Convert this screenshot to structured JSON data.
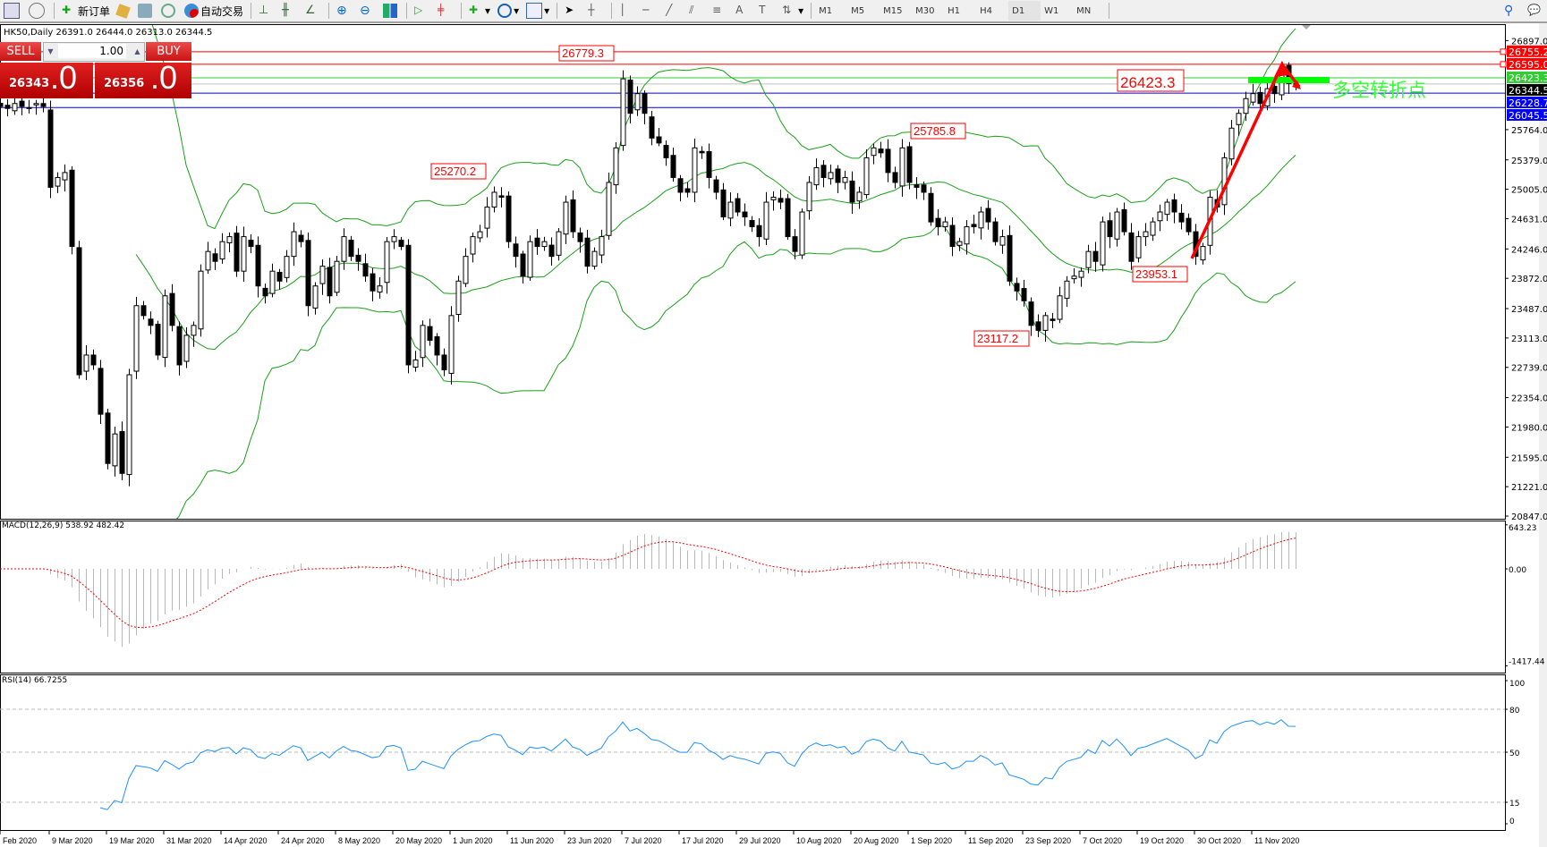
{
  "toolbar": {
    "new_order_label": "新订单",
    "auto_trading_label": "自动交易",
    "timeframes": [
      "M1",
      "M5",
      "M15",
      "M30",
      "H1",
      "H4",
      "D1",
      "W1",
      "MN"
    ],
    "active_timeframe": "D1"
  },
  "chart_header": "HK50,Daily  26391.0 26444.0 26313.0 26344.5",
  "trade_panel": {
    "sell_label": "SELL",
    "buy_label": "BUY",
    "lot": "1.00",
    "sell_price_main": "26343",
    "sell_price_frac": ".0",
    "buy_price_main": "26356",
    "buy_price_frac": ".0"
  },
  "chart_data": {
    "type": "candlestick",
    "symbol": "HK50",
    "timeframe": "Daily",
    "ylim": [
      20847.0,
      26897.0
    ],
    "price_ticks": [
      "26897.0",
      "25764.0",
      "25379.0",
      "25005.0",
      "24631.0",
      "24246.0",
      "23872.0",
      "23487.0",
      "23113.0",
      "22739.0",
      "22354.0",
      "21980.0",
      "21595.0",
      "21221.0",
      "20847.0"
    ],
    "date_ticks": [
      "Feb 2020",
      "9 Mar 2020",
      "19 Mar 2020",
      "31 Mar 2020",
      "14 Apr 2020",
      "24 Apr 2020",
      "8 May 2020",
      "20 May 2020",
      "1 Jun 2020",
      "11 Jun 2020",
      "23 Jun 2020",
      "7 Jul 2020",
      "17 Jul 2020",
      "29 Jul 2020",
      "10 Aug 2020",
      "20 Aug 2020",
      "1 Sep 2020",
      "11 Sep 2020",
      "23 Sep 2020",
      "7 Oct 2020",
      "19 Oct 2020",
      "30 Oct 2020",
      "11 Nov 2020"
    ],
    "closes": [
      26059,
      26034,
      26096,
      26059,
      26034,
      26096,
      26059,
      25030,
      25155,
      25218,
      24277,
      22645,
      22896,
      22771,
      22143,
      21516,
      21892,
      21390,
      22645,
      23524,
      23398,
      23273,
      22896,
      23649,
      23273,
      22771,
      23147,
      23273,
      23963,
      24214,
      24088,
      24339,
      24402,
      23963,
      24402,
      24277,
      23775,
      23649,
      23963,
      23837,
      24151,
      24465,
      24339,
      23524,
      23775,
      24026,
      23649,
      24088,
      24402,
      24151,
      24088,
      23900,
      23712,
      23775,
      24339,
      24402,
      24277,
      22771,
      22834,
      23273,
      23084,
      22896,
      22708,
      23398,
      23837,
      24151,
      24402,
      24465,
      24779,
      24967,
      24904,
      24339,
      24151,
      23900,
      24339,
      24277,
      24339,
      24151,
      24465,
      24841,
      24465,
      24339,
      24026,
      24214,
      24402,
      25092,
      25532,
      26410,
      25971,
      26222,
      25971,
      25657,
      25594,
      25406,
      25155,
      24967,
      24967,
      25532,
      25469,
      25155,
      24967,
      24653,
      24841,
      24716,
      24653,
      24528,
      24402,
      24841,
      24904,
      24841,
      24402,
      24214,
      24716,
      25092,
      25280,
      25155,
      25218,
      25092,
      25155,
      24841,
      24967,
      25406,
      25532,
      25469,
      25218,
      25092,
      25532,
      25092,
      25030,
      24967,
      24590,
      24528,
      24590,
      24277,
      24339,
      24528,
      24528,
      24716,
      24590,
      24339,
      24402,
      23837,
      23712,
      23586,
      23273,
      23210,
      23398,
      23335,
      23649,
      23837,
      23900,
      23963,
      24214,
      24088,
      24590,
      24402,
      24716,
      24465,
      24088,
      24402,
      24465,
      24590,
      24716,
      24841,
      24716,
      24590,
      24465,
      24151,
      24277,
      24904,
      24779,
      25406,
      25783,
      25971,
      26159,
      26222,
      26096,
      26285,
      26222,
      26536,
      26348,
      26344.5
    ],
    "indicators": {
      "bollinger": {
        "period": 20,
        "deviation": 2,
        "color": "#1aa01a"
      },
      "macd": {
        "label": "MACD(12,26,9) 538.92 482.42",
        "ticks": [
          "643.23",
          "0.00",
          "-1417.44"
        ],
        "max": 643.23,
        "min": -1417.44,
        "hist_color": "#b8b8b8",
        "signal_color": "#ff0000"
      },
      "rsi": {
        "label": "RSI(14) 66.7255",
        "ticks": [
          "100",
          "80",
          "50",
          "15",
          "0"
        ],
        "levels": [
          80,
          50,
          15
        ],
        "color": "#1e90ff"
      }
    },
    "levels": [
      {
        "price": 26755.2,
        "label": "26755.2",
        "color": "#ff0000"
      },
      {
        "price": 26595.0,
        "label": "26595.0",
        "color": "#ff0000"
      },
      {
        "price": 26423.3,
        "label": "26423.3",
        "color": "#33cc33"
      },
      {
        "price": 26344.5,
        "label": "26344.5",
        "color": "#000000",
        "line": "#c0c0c0"
      },
      {
        "price": 26228.7,
        "label": "26228.7",
        "color": "#0000ff"
      },
      {
        "price": 26045.5,
        "label": "26045.5",
        "color": "#0000ff"
      }
    ],
    "annotations": [
      "26779.3",
      "25270.2",
      "25785.8",
      "23953.1",
      "23117.2",
      "26423.3"
    ],
    "pivot_text": "多空转折点",
    "pivot_color": "#33ff33",
    "arrow_color": "#ff0000"
  }
}
